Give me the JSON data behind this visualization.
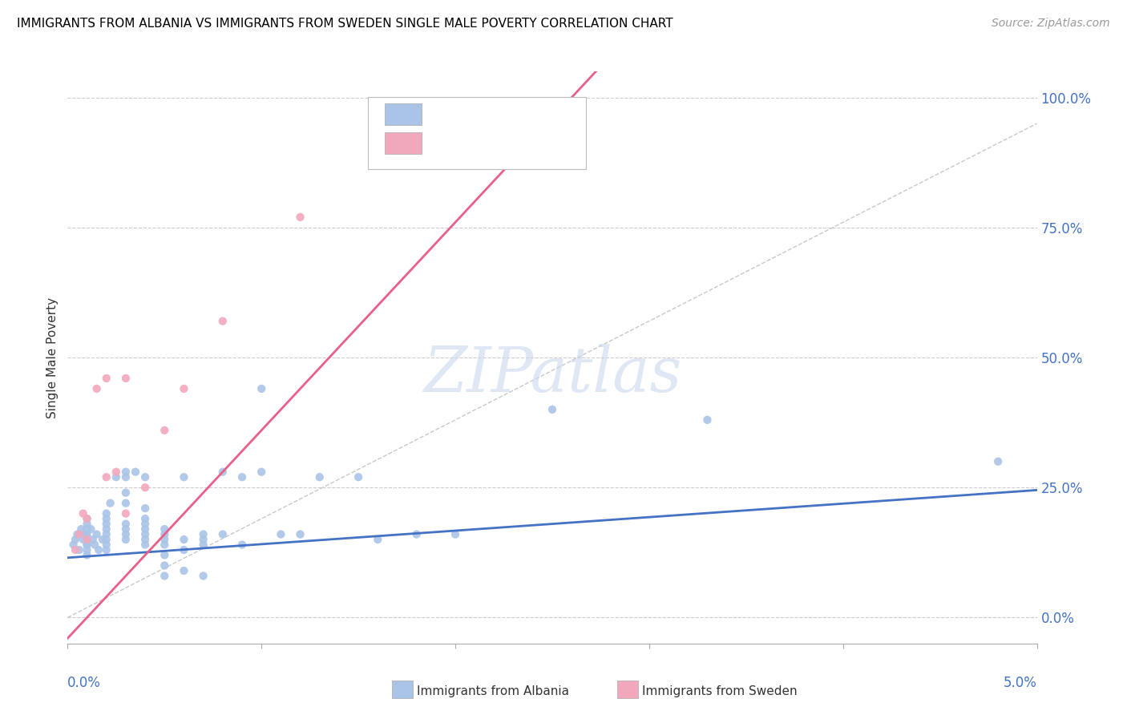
{
  "title": "IMMIGRANTS FROM ALBANIA VS IMMIGRANTS FROM SWEDEN SINGLE MALE POVERTY CORRELATION CHART",
  "source": "Source: ZipAtlas.com",
  "ylabel": "Single Male Poverty",
  "ytick_values": [
    0.0,
    0.25,
    0.5,
    0.75,
    1.0
  ],
  "xlim": [
    0.0,
    0.05
  ],
  "ylim": [
    -0.05,
    1.05
  ],
  "color_albania": "#aac4e8",
  "color_sweden": "#f2a8bc",
  "line_color_albania": "#4472c4",
  "line_color_sweden": "#e8608a",
  "albania_slope": 2.6,
  "albania_intercept": 0.115,
  "sweden_slope": 40.0,
  "sweden_intercept": -0.04,
  "albania_x": [
    0.0003,
    0.0004,
    0.0005,
    0.0006,
    0.0007,
    0.0008,
    0.0009,
    0.001,
    0.001,
    0.001,
    0.001,
    0.001,
    0.001,
    0.001,
    0.001,
    0.001,
    0.0012,
    0.0013,
    0.0014,
    0.0015,
    0.0016,
    0.0018,
    0.002,
    0.002,
    0.002,
    0.002,
    0.002,
    0.002,
    0.002,
    0.002,
    0.0022,
    0.0025,
    0.003,
    0.003,
    0.003,
    0.003,
    0.003,
    0.003,
    0.003,
    0.003,
    0.0035,
    0.004,
    0.004,
    0.004,
    0.004,
    0.004,
    0.004,
    0.004,
    0.004,
    0.005,
    0.005,
    0.005,
    0.005,
    0.005,
    0.005,
    0.005,
    0.006,
    0.006,
    0.006,
    0.006,
    0.007,
    0.007,
    0.007,
    0.007,
    0.008,
    0.008,
    0.009,
    0.009,
    0.01,
    0.01,
    0.011,
    0.012,
    0.013,
    0.015,
    0.016,
    0.018,
    0.02,
    0.025,
    0.033,
    0.048
  ],
  "albania_y": [
    0.14,
    0.15,
    0.16,
    0.13,
    0.17,
    0.15,
    0.16,
    0.17,
    0.14,
    0.16,
    0.13,
    0.12,
    0.18,
    0.15,
    0.19,
    0.14,
    0.17,
    0.15,
    0.14,
    0.16,
    0.13,
    0.15,
    0.17,
    0.16,
    0.14,
    0.15,
    0.13,
    0.18,
    0.19,
    0.2,
    0.22,
    0.27,
    0.16,
    0.17,
    0.18,
    0.15,
    0.27,
    0.28,
    0.22,
    0.24,
    0.28,
    0.17,
    0.18,
    0.16,
    0.15,
    0.21,
    0.14,
    0.27,
    0.19,
    0.16,
    0.17,
    0.14,
    0.12,
    0.08,
    0.1,
    0.15,
    0.13,
    0.27,
    0.15,
    0.09,
    0.15,
    0.16,
    0.14,
    0.08,
    0.28,
    0.16,
    0.14,
    0.27,
    0.44,
    0.28,
    0.16,
    0.16,
    0.27,
    0.27,
    0.15,
    0.16,
    0.16,
    0.4,
    0.38,
    0.3
  ],
  "sweden_x": [
    0.0004,
    0.0006,
    0.0008,
    0.001,
    0.001,
    0.0015,
    0.002,
    0.002,
    0.0025,
    0.003,
    0.003,
    0.004,
    0.005,
    0.006,
    0.008,
    0.012,
    0.016
  ],
  "sweden_y": [
    0.13,
    0.16,
    0.2,
    0.15,
    0.19,
    0.44,
    0.46,
    0.27,
    0.28,
    0.46,
    0.2,
    0.25,
    0.36,
    0.44,
    0.57,
    0.77,
    0.9
  ]
}
